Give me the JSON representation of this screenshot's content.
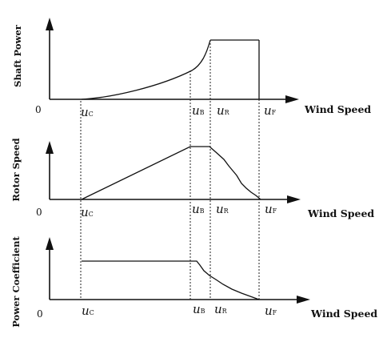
{
  "panels": [
    {
      "ylabel": "Shaft Power",
      "zero": "0",
      "xlabel": "Wind Speed",
      "markers": [
        {
          "main": "u",
          "sub": "C"
        },
        {
          "main": "u",
          "sub": "B"
        },
        {
          "main": "u",
          "sub": "R"
        },
        {
          "main": "u",
          "sub": "F"
        }
      ]
    },
    {
      "ylabel": "Rotor Speed",
      "zero": "0",
      "xlabel": "Wind Speed",
      "markers": [
        {
          "main": "u",
          "sub": "C"
        },
        {
          "main": "u",
          "sub": "B"
        },
        {
          "main": "u",
          "sub": "R"
        },
        {
          "main": "u",
          "sub": "F"
        }
      ]
    },
    {
      "ylabel": "Power Coefficient",
      "zero": "0",
      "xlabel": "Wind Speed",
      "markers": [
        {
          "main": "u",
          "sub": "C"
        },
        {
          "main": "u",
          "sub": "B"
        },
        {
          "main": "u",
          "sub": "R"
        },
        {
          "main": "u",
          "sub": "F"
        }
      ]
    }
  ]
}
